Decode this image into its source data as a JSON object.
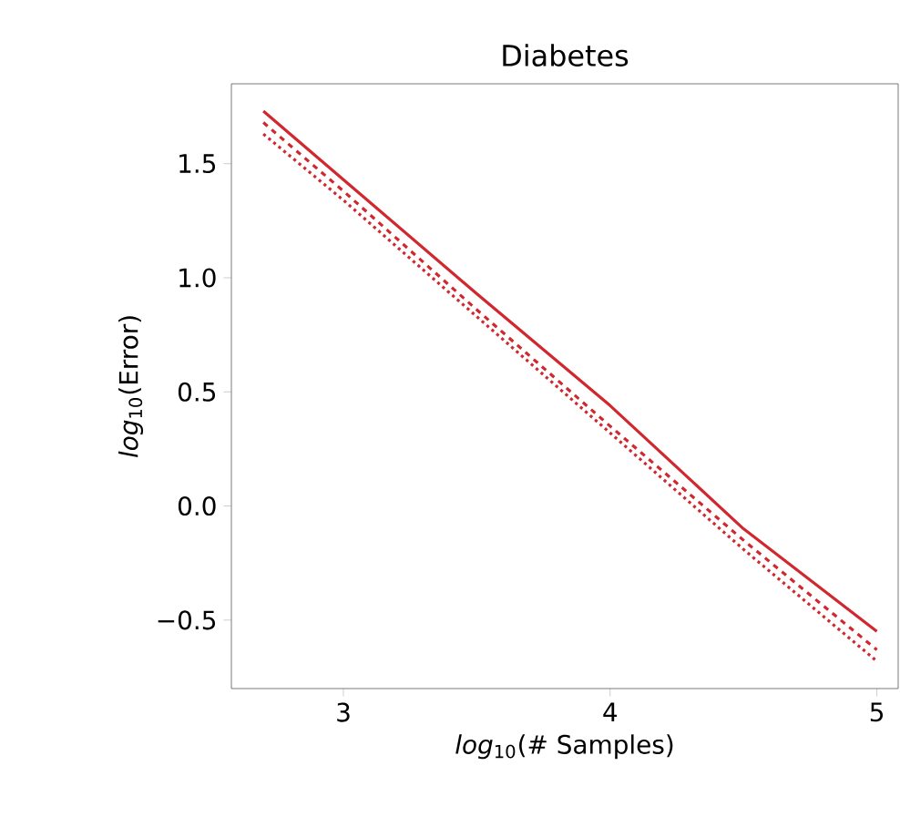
{
  "chart_data": {
    "type": "line",
    "title": "Diabetes",
    "xlabel": "*log*$_{10}$(# Samples)",
    "ylabel": "*log*$_{10}$(Error)",
    "series": [
      {
        "color": "#d0282e",
        "line_style": "solid",
        "x": [
          2.7,
          3,
          3.5,
          4,
          4.5,
          5
        ],
        "values": [
          1.73,
          1.43,
          0.93,
          0.44,
          -0.1,
          -0.55
        ]
      },
      {
        "color": "#d0282e",
        "line_style": "dashed",
        "x": [
          2.7,
          3,
          3.5,
          4,
          4.5,
          5
        ],
        "values": [
          1.68,
          1.38,
          0.86,
          0.35,
          -0.15,
          -0.63
        ]
      },
      {
        "color": "#d0282e",
        "line_style": "dotted",
        "x": [
          2.7,
          3,
          3.5,
          4,
          4.5,
          5
        ],
        "values": [
          1.63,
          1.34,
          0.83,
          0.32,
          -0.19,
          -0.68
        ]
      }
    ],
    "xlim": [
      2.58,
      5.08
    ],
    "ylim": [
      -0.8,
      1.85
    ],
    "xticks": [
      3,
      4,
      5
    ],
    "yticks": [
      {
        "value": -0.5,
        "label": "−0.5"
      },
      {
        "value": 0,
        "label": "0.0"
      },
      {
        "value": 0.5,
        "label": "0.5"
      },
      {
        "value": 1,
        "label": "1.0"
      },
      {
        "value": 1.5,
        "label": "1.5"
      }
    ],
    "grid": false
  }
}
